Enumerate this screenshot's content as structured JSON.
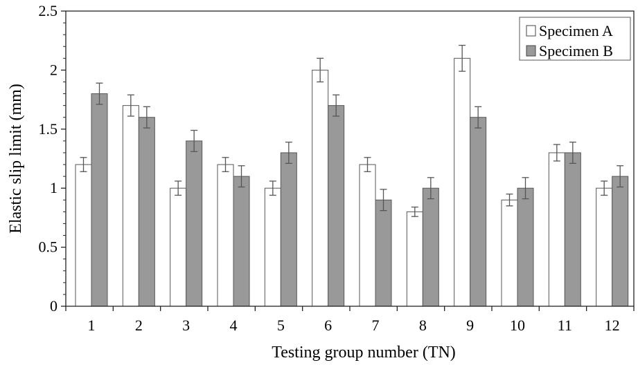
{
  "chart_data": {
    "type": "bar",
    "title": "",
    "xlabel": "Testing group number (TN)",
    "ylabel": "Elastic slip limit (mm)",
    "ylim": [
      0,
      2.5
    ],
    "yticks": [
      "0",
      "0.5",
      "1",
      "1.5",
      "2",
      "2.5"
    ],
    "yticks_values": [
      0,
      0.5,
      1,
      1.5,
      2,
      2.5
    ],
    "categories": [
      "1",
      "2",
      "3",
      "4",
      "5",
      "6",
      "7",
      "8",
      "9",
      "10",
      "11",
      "12"
    ],
    "series": [
      {
        "name": "Specimen A",
        "color": "#ffffff",
        "values": [
          1.2,
          1.7,
          1.0,
          1.2,
          1.0,
          2.0,
          1.2,
          0.8,
          2.1,
          0.9,
          1.3,
          1.0
        ],
        "errors": [
          0.06,
          0.09,
          0.06,
          0.06,
          0.06,
          0.1,
          0.06,
          0.04,
          0.11,
          0.05,
          0.07,
          0.06
        ]
      },
      {
        "name": "Specimen B",
        "color": "#999999",
        "values": [
          1.8,
          1.6,
          1.4,
          1.1,
          1.3,
          1.7,
          0.9,
          1.0,
          1.6,
          1.0,
          1.3,
          1.1
        ],
        "errors": [
          0.09,
          0.09,
          0.09,
          0.09,
          0.09,
          0.09,
          0.09,
          0.09,
          0.09,
          0.09,
          0.09,
          0.09
        ]
      }
    ],
    "legend_position": "top-right",
    "grid": false
  }
}
